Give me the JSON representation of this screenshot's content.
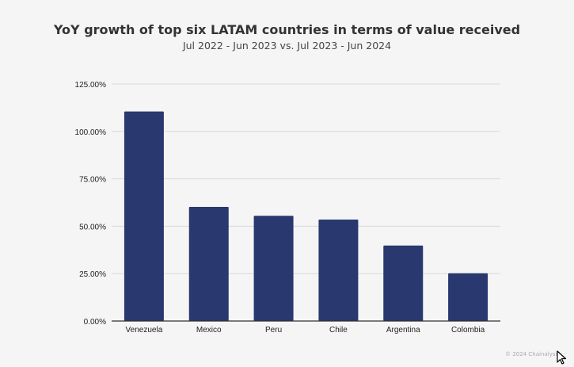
{
  "header": {
    "title": "YoY growth of top six LATAM countries in terms of value received",
    "subtitle": "Jul 2022 - Jun 2023 vs. Jul 2023 - Jun 2024"
  },
  "footer": {
    "copyright": "© 2024 Chainalysis"
  },
  "chart_data": {
    "type": "bar",
    "title": "YoY growth of top six LATAM countries in terms of value received",
    "subtitle": "Jul 2022 - Jun 2023 vs. Jul 2023 - Jun 2024",
    "categories": [
      "Venezuela",
      "Mexico",
      "Peru",
      "Chile",
      "Argentina",
      "Colombia"
    ],
    "values": [
      110.5,
      60.2,
      55.5,
      53.5,
      39.8,
      25.2
    ],
    "unit": "%",
    "ylim": [
      0,
      125
    ],
    "yticks": [
      "0.00%",
      "25.00%",
      "50.00%",
      "75.00%",
      "100.00%",
      "125.00%"
    ],
    "grid": true,
    "bar_color": "#29386f",
    "grid_color": "#d9d9d9",
    "axis_color": "#333333"
  }
}
